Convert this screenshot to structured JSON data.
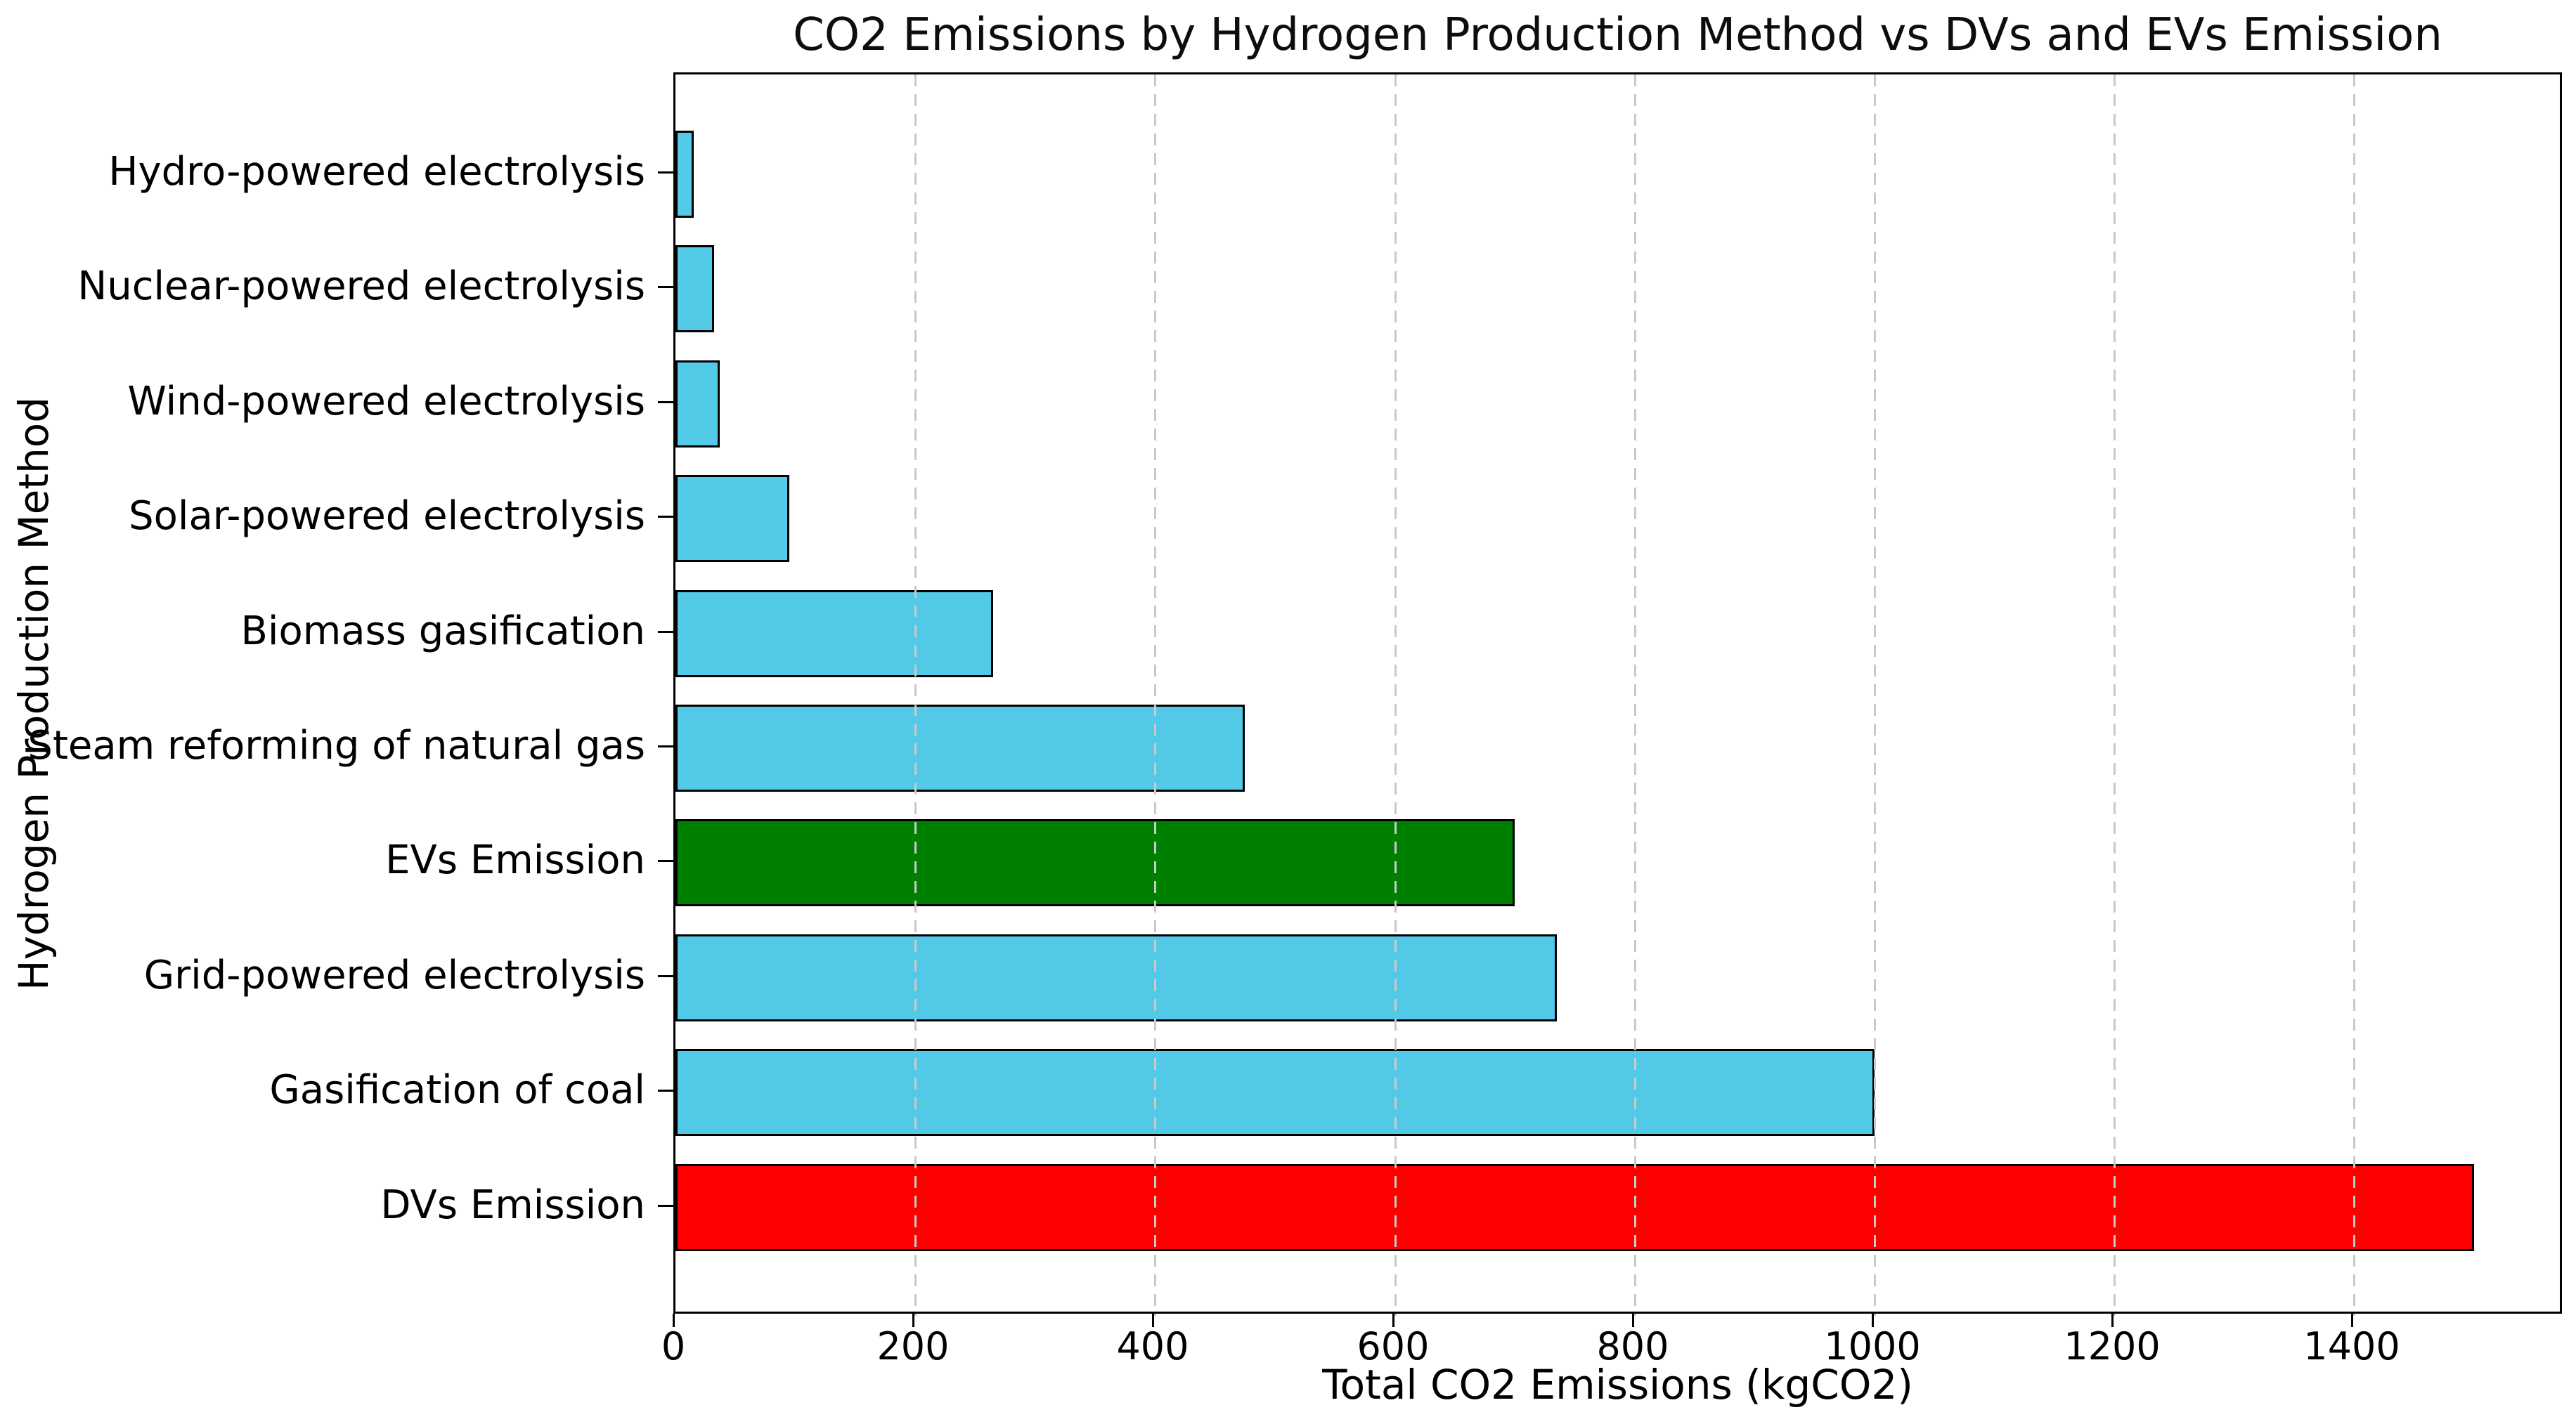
{
  "chart_data": {
    "type": "bar",
    "orientation": "horizontal",
    "title": "CO2 Emissions by Hydrogen Production Method vs DVs and EVs Emission",
    "xlabel": "Total CO2 Emissions (kgCO2)",
    "ylabel": "Hydrogen Production Method",
    "categories": [
      "Hydro-powered electrolysis",
      "Nuclear-powered electrolysis",
      "Wind-powered electrolysis",
      "Solar-powered electrolysis",
      "Biomass gasification",
      "Steam reforming of natural gas",
      "EVs Emission",
      "Grid-powered electrolysis",
      "Gasification of coal",
      "DVs Emission"
    ],
    "values": [
      15,
      32,
      37,
      95,
      265,
      475,
      700,
      735,
      1000,
      1500
    ],
    "bar_colors": [
      "#53C9E8",
      "#53C9E8",
      "#53C9E8",
      "#53C9E8",
      "#53C9E8",
      "#53C9E8",
      "#008000",
      "#53C9E8",
      "#53C9E8",
      "#FF0000"
    ],
    "bar_edge_color": "#000000",
    "x_ticks": [
      0,
      200,
      400,
      600,
      800,
      1000,
      1200,
      1400
    ],
    "xlim": [
      0,
      1575
    ],
    "grid": {
      "axis": "x",
      "style": "dashed",
      "color": "#c9c9c9",
      "drawn_over_bars": true
    },
    "legend_position": "none",
    "background_color": "#ffffff"
  }
}
